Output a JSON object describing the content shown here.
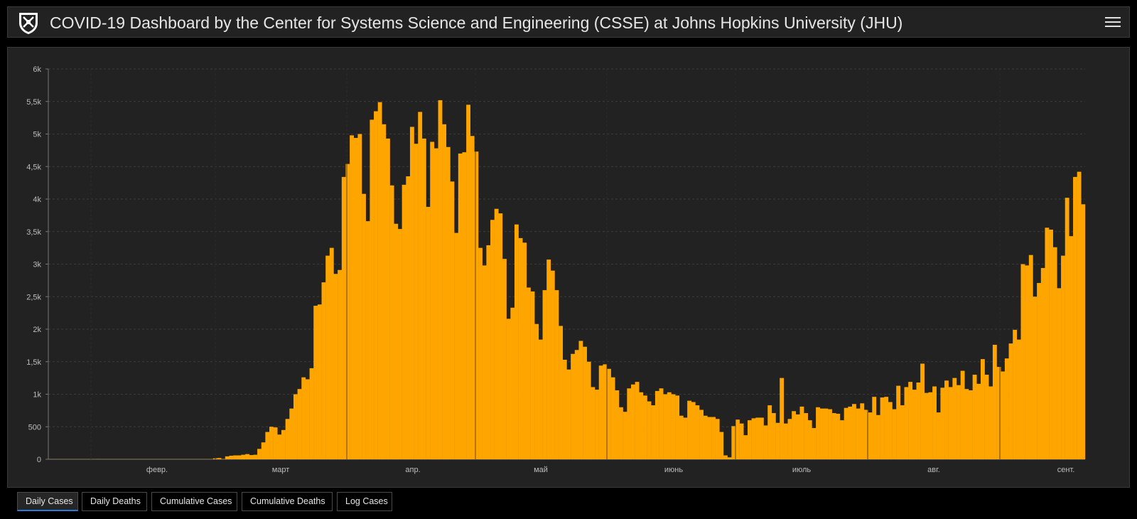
{
  "header": {
    "title": "COVID-19 Dashboard by the Center for Systems Science and Engineering (CSSE) at Johns Hopkins University (JHU)"
  },
  "colors": {
    "bar": "#FFA500",
    "background": "#222222",
    "accent": "#2C7BD6"
  },
  "tabs": [
    {
      "label": "Daily Cases",
      "active": true
    },
    {
      "label": "Daily Deaths",
      "active": false
    },
    {
      "label": "Cumulative Cases",
      "active": false
    },
    {
      "label": "Cumulative Deaths",
      "active": false
    },
    {
      "label": "Log Cases",
      "active": false
    }
  ],
  "chart_data": {
    "type": "bar",
    "title": "",
    "xlabel": "",
    "ylabel": "",
    "ylim": [
      0,
      6000
    ],
    "grid": true,
    "y_ticks": [
      "0",
      "500",
      "1k",
      "1,5k",
      "2k",
      "2,5k",
      "3k",
      "3,5k",
      "4k",
      "4,5k",
      "5k",
      "5,5k",
      "6k"
    ],
    "x_ticks": [
      "февр.",
      "март",
      "апр.",
      "май",
      "июнь",
      "июль",
      "авг.",
      "сент."
    ],
    "values": [
      2,
      2,
      2,
      2,
      2,
      2,
      2,
      2,
      2,
      2,
      2,
      2,
      3,
      2,
      2,
      2,
      2,
      2,
      2,
      2,
      2,
      2,
      2,
      2,
      2,
      2,
      2,
      2,
      2,
      2,
      2,
      2,
      2,
      2,
      2,
      2,
      2,
      2,
      2,
      2,
      2,
      15,
      20,
      5,
      45,
      55,
      60,
      60,
      70,
      80,
      65,
      70,
      160,
      260,
      420,
      500,
      490,
      380,
      450,
      620,
      780,
      1000,
      1080,
      1260,
      1230,
      1400,
      2360,
      2380,
      2720,
      3130,
      3250,
      2850,
      2910,
      4340,
      4540,
      4980,
      4940,
      5000,
      4080,
      3660,
      5220,
      5350,
      5490,
      5150,
      4930,
      4210,
      3620,
      3540,
      4220,
      4350,
      5110,
      4850,
      5340,
      4930,
      3880,
      4880,
      4780,
      5520,
      5150,
      4800,
      4270,
      3480,
      4700,
      4720,
      5450,
      4970,
      4730,
      3250,
      2980,
      3290,
      3680,
      3850,
      3780,
      3080,
      2160,
      2330,
      3610,
      3400,
      3330,
      2640,
      2580,
      2080,
      1840,
      2600,
      3070,
      2900,
      2600,
      2050,
      1530,
      1380,
      1620,
      1680,
      1820,
      1730,
      1500,
      1110,
      1070,
      1440,
      1460,
      1390,
      1260,
      1060,
      800,
      730,
      1090,
      1150,
      1190,
      1030,
      980,
      890,
      830,
      1050,
      1090,
      1000,
      1030,
      1000,
      980,
      670,
      640,
      900,
      880,
      830,
      760,
      670,
      650,
      650,
      620,
      420,
      60,
      30,
      510,
      610,
      550,
      370,
      600,
      630,
      640,
      640,
      520,
      830,
      710,
      560,
      1250,
      550,
      620,
      740,
      690,
      810,
      710,
      600,
      480,
      800,
      780,
      780,
      770,
      710,
      700,
      600,
      790,
      810,
      850,
      780,
      860,
      760,
      720,
      960,
      680,
      950,
      960,
      880,
      770,
      1130,
      830,
      1110,
      1190,
      1070,
      1180,
      1470,
      1020,
      1030,
      1120,
      720,
      1100,
      1210,
      1110,
      1250,
      1140,
      1360,
      1080,
      1060,
      1300,
      1160,
      1540,
      1300,
      1120,
      1760,
      1420,
      1350,
      1550,
      1780,
      1990,
      1840,
      3000,
      2980,
      3140,
      2500,
      2710,
      2940,
      3560,
      3530,
      3260,
      2630,
      3130,
      4020,
      3430,
      4340,
      4420,
      3920
    ],
    "series": [
      {
        "values": "see values"
      }
    ]
  }
}
